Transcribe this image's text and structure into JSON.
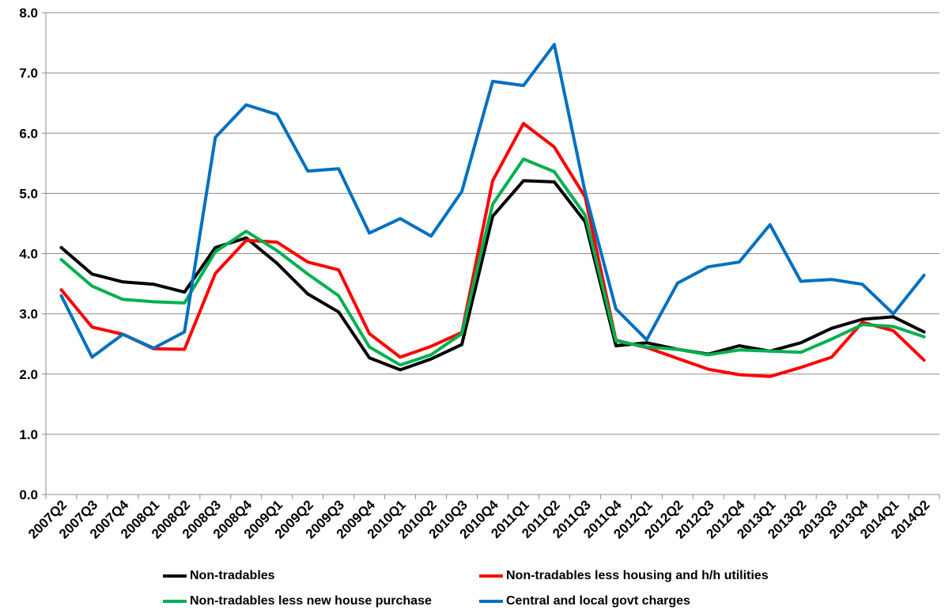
{
  "chart_data": {
    "type": "line",
    "title": "",
    "xlabel": "",
    "ylabel": "",
    "ylim": [
      0,
      8
    ],
    "yticks": [
      "0.0",
      "1.0",
      "2.0",
      "3.0",
      "4.0",
      "5.0",
      "6.0",
      "7.0",
      "8.0"
    ],
    "grid": true,
    "categories": [
      "2007Q2",
      "2007Q3",
      "2007Q4",
      "2008Q1",
      "2008Q2",
      "2008Q3",
      "2008Q4",
      "2009Q1",
      "2009Q2",
      "2009Q3",
      "2009Q4",
      "2010Q1",
      "2010Q2",
      "2010Q3",
      "2010Q4",
      "2011Q1",
      "2011Q2",
      "2011Q3",
      "2011Q4",
      "2012Q1",
      "2012Q2",
      "2012Q3",
      "2012Q4",
      "2013Q1",
      "2013Q2",
      "2013Q3",
      "2013Q4",
      "2014Q1",
      "2014Q2"
    ],
    "series": [
      {
        "name": "Non-tradables",
        "color": "#000000",
        "values": [
          4.1,
          3.66,
          3.53,
          3.49,
          3.36,
          4.1,
          4.26,
          3.84,
          3.33,
          3.03,
          2.27,
          2.07,
          2.25,
          2.49,
          4.62,
          5.21,
          5.19,
          4.53,
          2.47,
          2.52,
          2.41,
          2.33,
          2.47,
          2.38,
          2.52,
          2.76,
          2.91,
          2.95,
          2.7
        ]
      },
      {
        "name": "Non-tradables less housing and h/h utilities",
        "color": "#ff0000",
        "values": [
          3.4,
          2.78,
          2.66,
          2.42,
          2.41,
          3.67,
          4.22,
          4.19,
          3.86,
          3.73,
          2.67,
          2.28,
          2.46,
          2.69,
          5.21,
          6.16,
          5.77,
          4.94,
          2.56,
          2.44,
          2.26,
          2.08,
          1.99,
          1.96,
          2.11,
          2.28,
          2.86,
          2.72,
          2.23
        ]
      },
      {
        "name": "Non-tradables less new house purchase",
        "color": "#00b050",
        "values": [
          3.9,
          3.46,
          3.24,
          3.2,
          3.18,
          4.03,
          4.37,
          4.05,
          3.66,
          3.3,
          2.45,
          2.15,
          2.32,
          2.67,
          4.82,
          5.57,
          5.36,
          4.64,
          2.55,
          2.45,
          2.41,
          2.32,
          2.4,
          2.38,
          2.36,
          2.58,
          2.82,
          2.79,
          2.62
        ]
      },
      {
        "name": "Central and local govt charges",
        "color": "#0070c0",
        "values": [
          3.3,
          2.28,
          2.66,
          2.43,
          2.7,
          5.93,
          6.47,
          6.31,
          5.37,
          5.41,
          4.34,
          4.58,
          4.29,
          5.03,
          6.86,
          6.79,
          7.47,
          5.02,
          3.08,
          2.57,
          3.51,
          3.78,
          3.86,
          4.48,
          3.54,
          3.57,
          3.49,
          3.0,
          3.64
        ]
      }
    ],
    "legend_position": "bottom"
  }
}
